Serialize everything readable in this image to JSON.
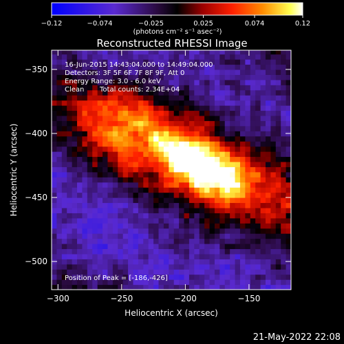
{
  "chart_data": {
    "type": "heatmap",
    "title": "Reconstructed RHESSI Image",
    "xlabel": "Heliocentric X (arcsec)",
    "ylabel": "Heliocentric Y (arcsec)",
    "xlim": [
      -305,
      -117
    ],
    "ylim": [
      -522,
      -335
    ],
    "x_ticks": [
      -300,
      -250,
      -200,
      -150
    ],
    "y_ticks": [
      -350,
      -400,
      -450,
      -500
    ],
    "x_tick_labels": [
      "−300",
      "−250",
      "−200",
      "−150"
    ],
    "y_tick_labels": [
      "−350",
      "−400",
      "−450",
      "−500"
    ],
    "colorbar": {
      "range": [
        -0.12,
        0.12
      ],
      "ticks": [
        -0.12,
        -0.074,
        -0.025,
        0.025,
        0.074,
        0.12
      ],
      "tick_labels": [
        "−0.12",
        "−0.074",
        "−0.025",
        "0.025",
        "0.074",
        "0.12"
      ],
      "units": "(photons cm⁻² s⁻¹ asec⁻²)"
    },
    "peak": [
      -186,
      -426
    ],
    "annotations": {
      "time": "16-Jun-2015 14:43:04.000 to 14:49:04.000",
      "detectors": "Detectors: 3F 5F 6F 7F 8F 9F, Att 0",
      "energy": "Energy Range: 3.0 - 6.0 keV",
      "clean_label": "Clean",
      "counts": "Total counts: 2.34E+04",
      "peak_text": "Position of Peak = [-186,-426]"
    },
    "timestamp": "21-May-2022 22:08"
  },
  "colors": {
    "background": "#000000",
    "colormap": [
      "#0000ff",
      "#5a2ad0",
      "#3a1460",
      "#000000",
      "#a00000",
      "#ff3000",
      "#ff9000",
      "#ffff40",
      "#ffffff"
    ]
  }
}
